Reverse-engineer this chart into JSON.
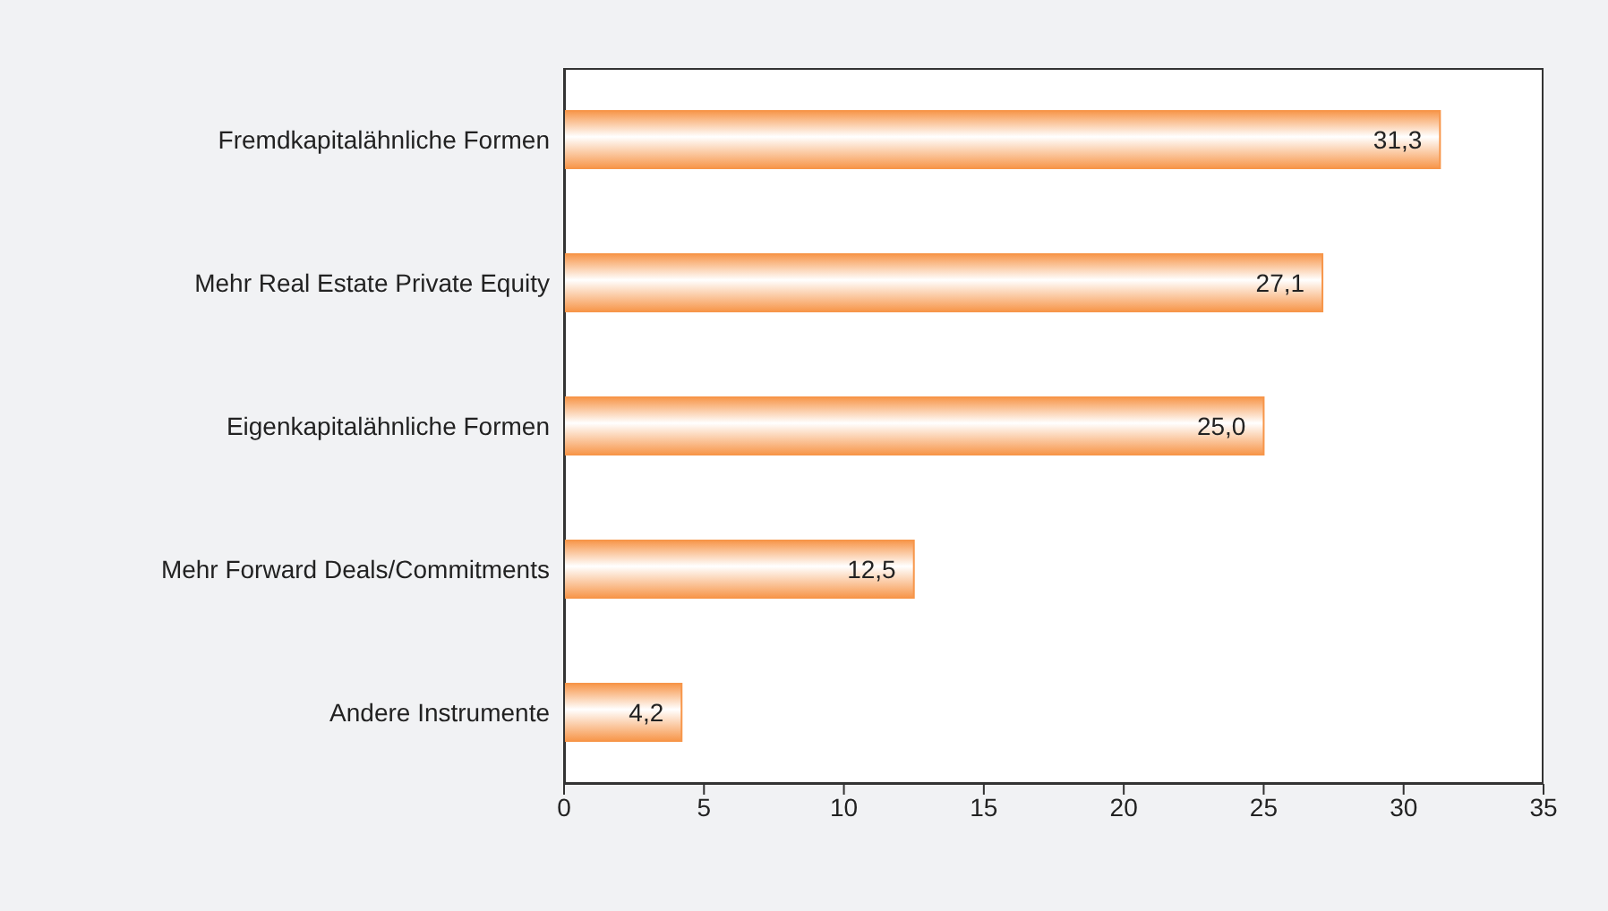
{
  "chart_data": {
    "type": "bar",
    "orientation": "horizontal",
    "categories": [
      "Fremdkapitalähnliche Formen",
      "Mehr Real Estate Private Equity",
      "Eigenkapitalähnliche Formen",
      "Mehr Forward Deals/Commitments",
      "Andere Instrumente"
    ],
    "values": [
      31.3,
      27.1,
      25.0,
      12.5,
      4.2
    ],
    "value_labels": [
      "31,3",
      "27,1",
      "25,0",
      "12,5",
      "4,2"
    ],
    "color": "#f7964a",
    "xlim": [
      0,
      35
    ],
    "xticks": [
      0,
      5,
      10,
      15,
      20,
      25,
      30,
      35
    ],
    "grid": false,
    "legend": false
  }
}
